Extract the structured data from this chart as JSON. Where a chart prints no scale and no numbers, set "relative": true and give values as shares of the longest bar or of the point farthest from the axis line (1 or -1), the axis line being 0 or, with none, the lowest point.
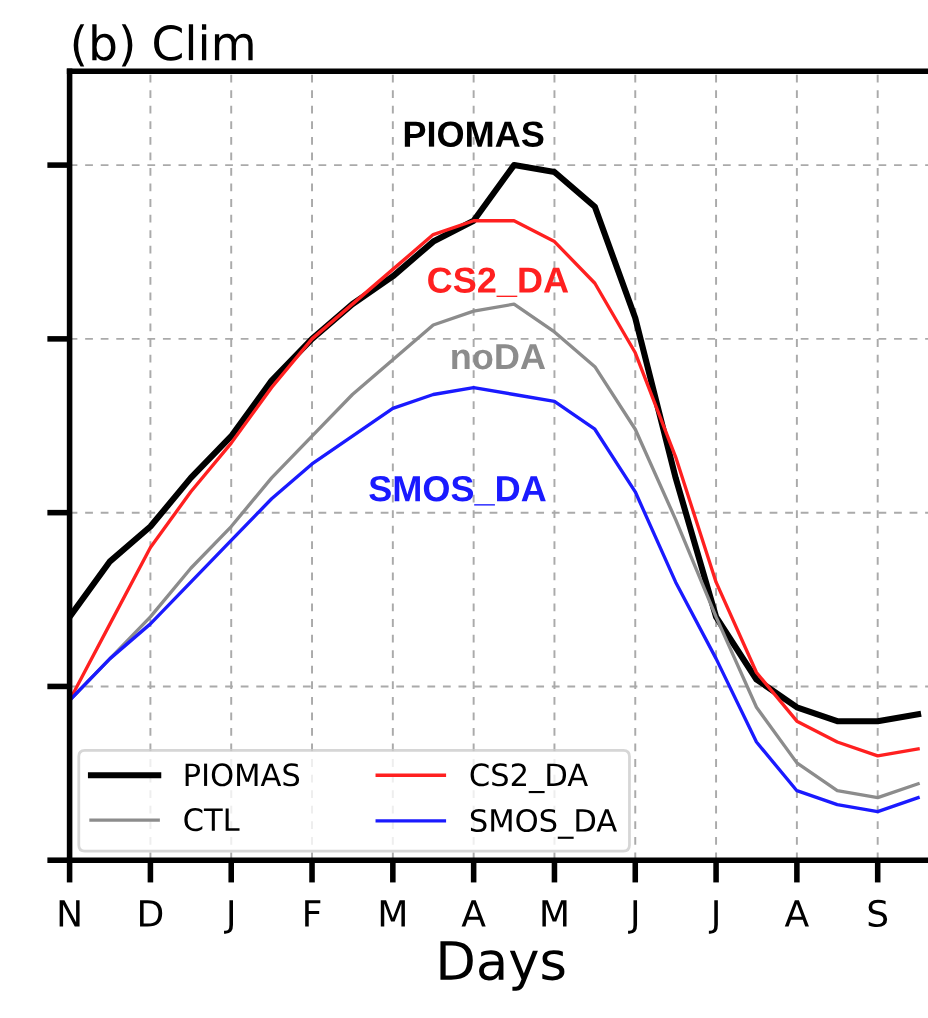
{
  "chart_data": {
    "type": "line",
    "title": "(b) Clim",
    "xlabel": "Days",
    "relative": true,
    "grid": true,
    "legend": "bottom left",
    "line_style": "solid",
    "marker": "none",
    "categories": [
      "N",
      null,
      "D",
      null,
      "J",
      null,
      "F",
      null,
      "M",
      null,
      "A",
      null,
      "M",
      null,
      "J",
      null,
      "J",
      null,
      "A",
      null,
      "S",
      null
    ],
    "annotations": [
      "PIOMAS",
      "CS2_DA",
      "noDA",
      "SMOS_DA"
    ],
    "series": [
      {
        "name": "PIOMAS",
        "color": "#000000",
        "values": [
          0.35,
          0.43,
          0.48,
          0.55,
          0.61,
          0.69,
          0.75,
          0.8,
          0.84,
          0.89,
          0.92,
          1.0,
          0.99,
          0.94,
          0.78,
          0.55,
          0.35,
          0.26,
          0.22,
          0.2,
          0.2,
          0.21
        ]
      },
      {
        "name": "CTL",
        "color": "#8c8c8c",
        "values": [
          0.23,
          0.29,
          0.35,
          0.42,
          0.48,
          0.55,
          0.61,
          0.67,
          0.72,
          0.77,
          0.79,
          0.8,
          0.76,
          0.71,
          0.62,
          0.49,
          0.35,
          0.22,
          0.14,
          0.1,
          0.09,
          0.11
        ]
      },
      {
        "name": "CS2_DA",
        "color": "#ff2020",
        "values": [
          0.23,
          0.34,
          0.45,
          0.53,
          0.6,
          0.68,
          0.75,
          0.8,
          0.85,
          0.9,
          0.92,
          0.92,
          0.89,
          0.83,
          0.73,
          0.58,
          0.4,
          0.27,
          0.2,
          0.17,
          0.15,
          0.16
        ]
      },
      {
        "name": "SMOS_DA",
        "color": "#1a1aff",
        "values": [
          0.23,
          0.29,
          0.34,
          0.4,
          0.46,
          0.52,
          0.57,
          0.61,
          0.65,
          0.67,
          0.68,
          0.67,
          0.66,
          0.62,
          0.53,
          0.4,
          0.29,
          0.17,
          0.1,
          0.08,
          0.07,
          0.09
        ]
      }
    ]
  }
}
